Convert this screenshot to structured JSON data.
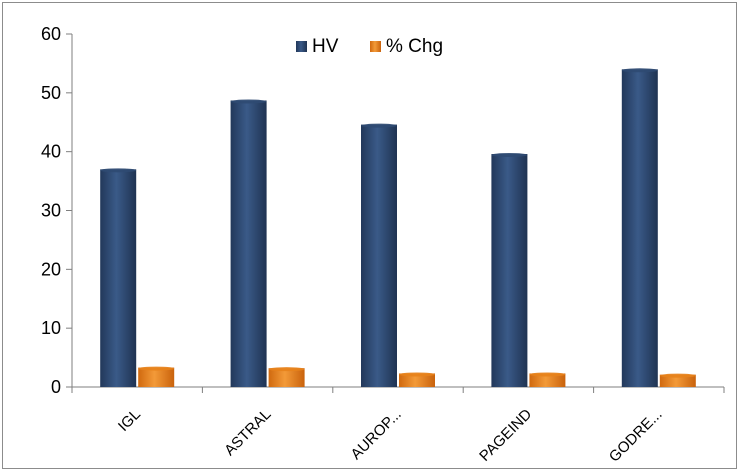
{
  "chart_data": {
    "type": "bar",
    "categories": [
      "IGL",
      "ASTRAL",
      "AUROP...",
      "PAGEIND",
      "GODRE..."
    ],
    "series": [
      {
        "name": "HV",
        "values": [
          37,
          48.7,
          44.6,
          39.6,
          54
        ]
      },
      {
        "name": "% Chg",
        "values": [
          3.3,
          3.2,
          2.3,
          2.3,
          2.1
        ]
      }
    ],
    "ylim": [
      0,
      60
    ],
    "yticks": [
      "0",
      "10",
      "20",
      "30",
      "40",
      "50",
      "60"
    ],
    "legend_position": "top-center",
    "grid": false,
    "colors": {
      "HV": "#2f4a72",
      "% Chg": "#e7821b"
    }
  }
}
